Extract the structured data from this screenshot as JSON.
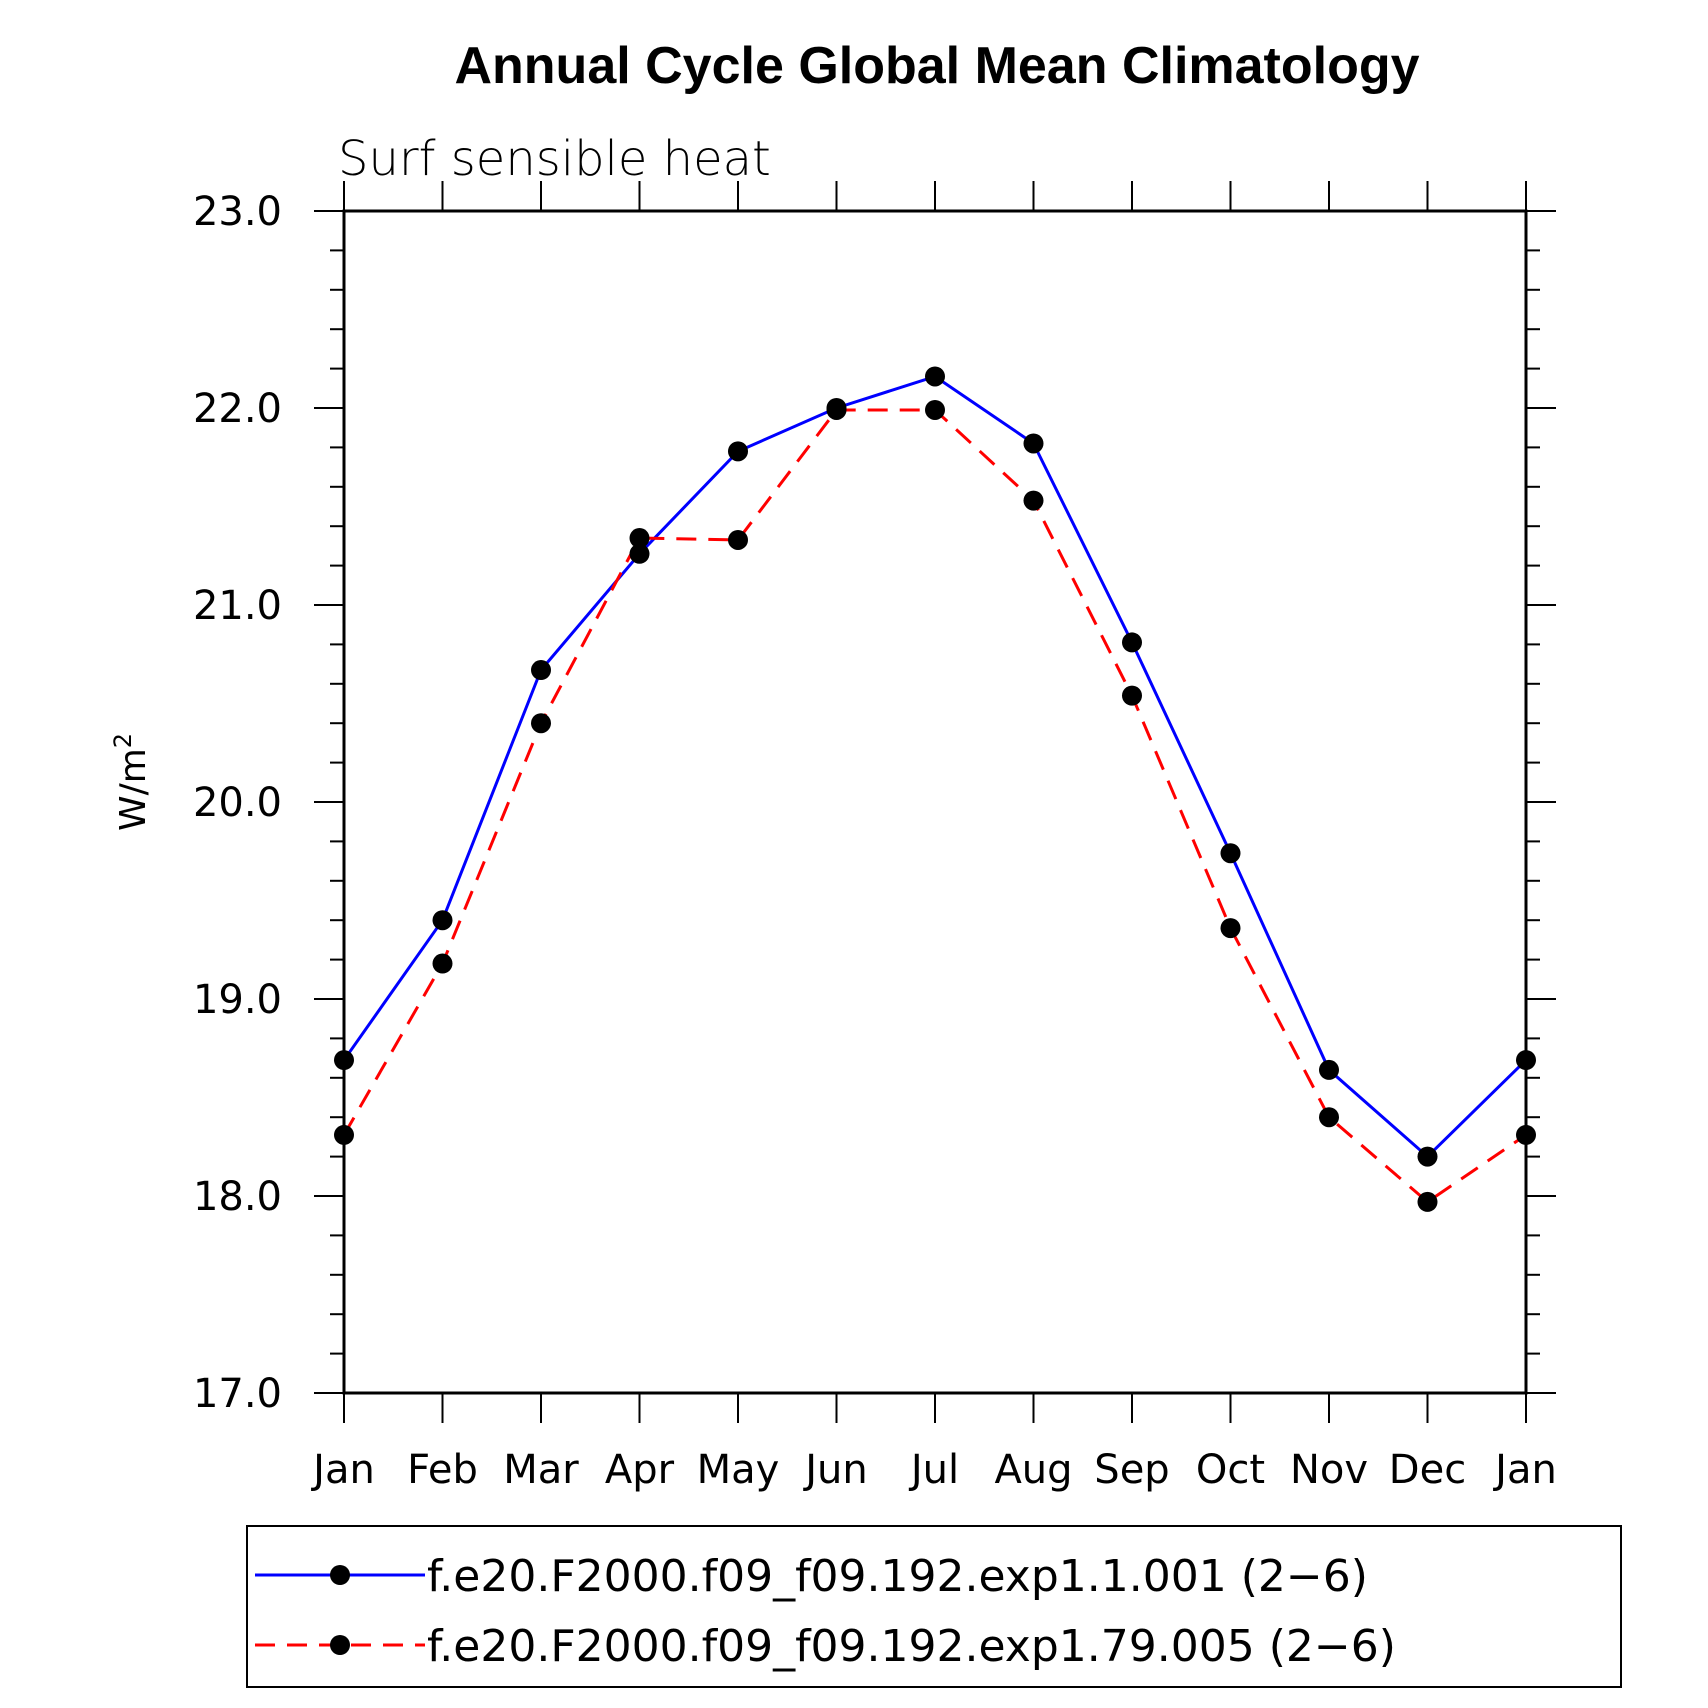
{
  "chart_data": {
    "type": "line",
    "title": "Annual Cycle Global Mean Climatology",
    "subtitle": "Surf sensible heat",
    "ylabel": "W/m",
    "ylabel_sup": "2",
    "xlabel": "",
    "categories": [
      "Jan",
      "Feb",
      "Mar",
      "Apr",
      "May",
      "Jun",
      "Jul",
      "Aug",
      "Sep",
      "Oct",
      "Nov",
      "Dec",
      "Jan"
    ],
    "ylim": [
      17.0,
      23.0
    ],
    "yticks": [
      "17.0",
      "18.0",
      "19.0",
      "20.0",
      "21.0",
      "22.0",
      "23.0"
    ],
    "grid": false,
    "legend_position": "bottom",
    "series": [
      {
        "name": "f.e20.F2000.f09_f09.192.exp1.1.001 (2−6)",
        "color": "#0000ff",
        "line_style": "solid",
        "marker": "filled-circle",
        "values": [
          18.69,
          19.4,
          20.67,
          21.26,
          21.78,
          22.0,
          22.16,
          21.82,
          20.81,
          19.74,
          18.64,
          18.2,
          18.69
        ]
      },
      {
        "name": "f.e20.F2000.f09_f09.192.exp1.79.005 (2−6)",
        "color": "#ff0000",
        "line_style": "dashed",
        "marker": "filled-circle",
        "values": [
          18.31,
          19.18,
          20.4,
          21.34,
          21.33,
          21.99,
          21.99,
          21.53,
          20.54,
          19.36,
          18.4,
          17.97,
          18.31
        ]
      }
    ]
  }
}
